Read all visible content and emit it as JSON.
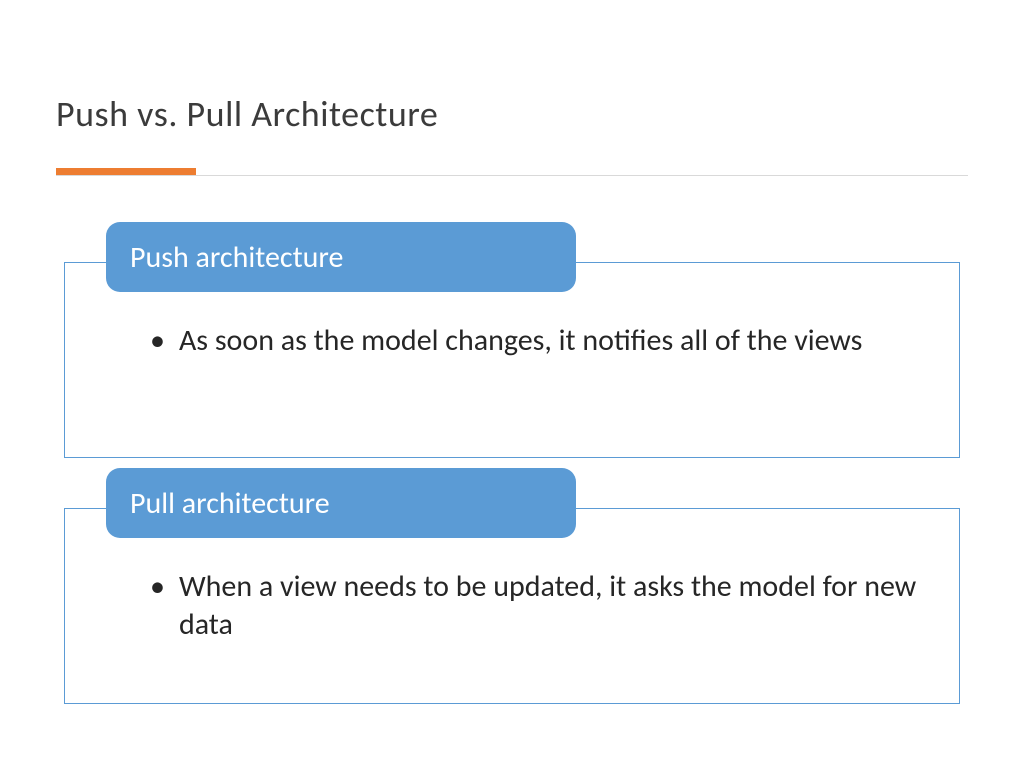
{
  "slide": {
    "title": "Push vs. Pull Architecture",
    "accent_color": "#ed7d31",
    "header_bg_color": "#5b9bd5",
    "border_color": "#5b9bd5",
    "text_color": "#262626",
    "header_text_color": "#ffffff",
    "background_color": "#ffffff",
    "divider_line_color": "#d9d9d9",
    "title_fontsize": 36,
    "header_fontsize": 30,
    "body_fontsize": 30
  },
  "blocks": [
    {
      "header": "Push architecture",
      "bullet": "As soon as the model changes, it notifies all of the views"
    },
    {
      "header": "Pull architecture",
      "bullet": "When a view needs to be updated, it asks the model for new data"
    }
  ]
}
